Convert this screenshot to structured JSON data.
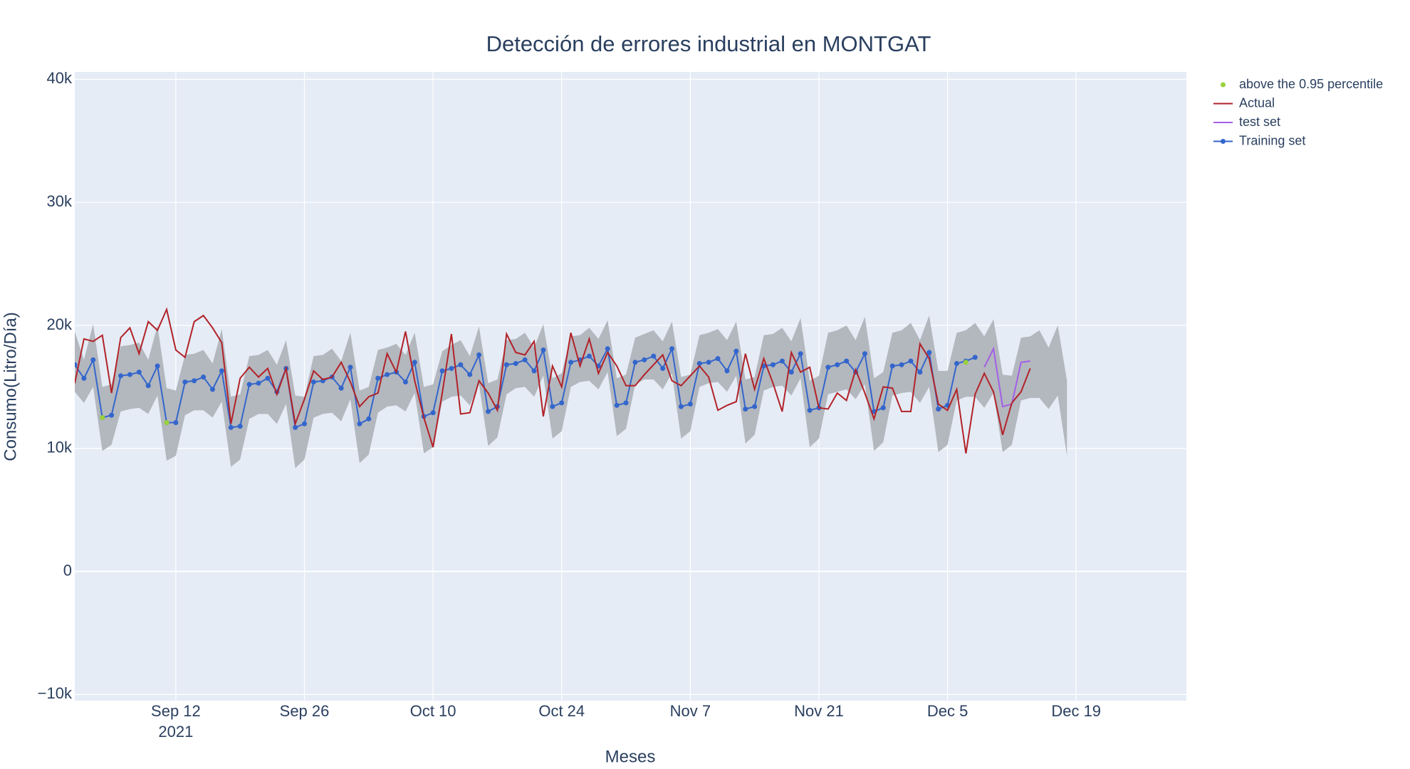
{
  "chart_data": {
    "type": "line",
    "title": "Detección de errores industrial en MONTGAT",
    "x_label": "Meses",
    "y_label": "Consumo(Litro/Día)",
    "x": [
      "2021-09-01",
      "2021-09-02",
      "2021-09-03",
      "2021-09-04",
      "2021-09-05",
      "2021-09-06",
      "2021-09-07",
      "2021-09-08",
      "2021-09-09",
      "2021-09-10",
      "2021-09-11",
      "2021-09-12",
      "2021-09-13",
      "2021-09-14",
      "2021-09-15",
      "2021-09-16",
      "2021-09-17",
      "2021-09-18",
      "2021-09-19",
      "2021-09-20",
      "2021-09-21",
      "2021-09-22",
      "2021-09-23",
      "2021-09-24",
      "2021-09-25",
      "2021-09-26",
      "2021-09-27",
      "2021-09-28",
      "2021-09-29",
      "2021-09-30",
      "2021-10-01",
      "2021-10-02",
      "2021-10-03",
      "2021-10-04",
      "2021-10-05",
      "2021-10-06",
      "2021-10-07",
      "2021-10-08",
      "2021-10-09",
      "2021-10-10",
      "2021-10-11",
      "2021-10-12",
      "2021-10-13",
      "2021-10-14",
      "2021-10-15",
      "2021-10-16",
      "2021-10-17",
      "2021-10-18",
      "2021-10-19",
      "2021-10-20",
      "2021-10-21",
      "2021-10-22",
      "2021-10-23",
      "2021-10-24",
      "2021-10-25",
      "2021-10-26",
      "2021-10-27",
      "2021-10-28",
      "2021-10-29",
      "2021-10-30",
      "2021-10-31",
      "2021-11-01",
      "2021-11-02",
      "2021-11-03",
      "2021-11-04",
      "2021-11-05",
      "2021-11-06",
      "2021-11-07",
      "2021-11-08",
      "2021-11-09",
      "2021-11-10",
      "2021-11-11",
      "2021-11-12",
      "2021-11-13",
      "2021-11-14",
      "2021-11-15",
      "2021-11-16",
      "2021-11-17",
      "2021-11-18",
      "2021-11-19",
      "2021-11-20",
      "2021-11-21",
      "2021-11-22",
      "2021-11-23",
      "2021-11-24",
      "2021-11-25",
      "2021-11-26",
      "2021-11-27",
      "2021-11-28",
      "2021-11-29",
      "2021-11-30",
      "2021-12-01",
      "2021-12-02",
      "2021-12-03",
      "2021-12-04",
      "2021-12-05",
      "2021-12-06",
      "2021-12-07",
      "2021-12-08",
      "2021-12-09",
      "2021-12-10",
      "2021-12-11",
      "2021-12-12",
      "2021-12-13",
      "2021-12-14",
      "2021-12-15",
      "2021-12-16",
      "2021-12-17",
      "2021-12-18"
    ],
    "band": {
      "color": "#b3b7be",
      "upper": [
        19500,
        17200,
        20100,
        15000,
        15200,
        18300,
        18400,
        18600,
        17200,
        20000,
        14900,
        14700,
        17600,
        17700,
        18000,
        16900,
        19700,
        14200,
        14400,
        17500,
        17600,
        18000,
        16800,
        18800,
        14300,
        14200,
        17500,
        17600,
        18100,
        17100,
        19400,
        14700,
        15000,
        18000,
        18200,
        18500,
        17600,
        19400,
        15000,
        15200,
        17900,
        18400,
        18800,
        17500,
        19900,
        15300,
        15600,
        18800,
        18900,
        19400,
        18200,
        20100,
        15700,
        16100,
        19100,
        19200,
        19800,
        18900,
        20400,
        15700,
        16000,
        19000,
        19300,
        19600,
        18700,
        20300,
        15800,
        16000,
        19200,
        19400,
        19700,
        18800,
        20300,
        15600,
        15800,
        19200,
        19300,
        19800,
        18700,
        20600,
        15500,
        15900,
        19400,
        19600,
        20000,
        18800,
        20700,
        15700,
        16200,
        19400,
        19600,
        20200,
        18800,
        20800,
        16300,
        16300,
        19400,
        19600,
        20200,
        19100,
        20500,
        16000,
        15900,
        19000,
        19100,
        19600,
        18200,
        20000,
        15500
      ],
      "lower": [
        14600,
        13700,
        15000,
        9800,
        10300,
        13000,
        13200,
        13300,
        12800,
        14300,
        9000,
        9400,
        12700,
        13100,
        13100,
        12500,
        13800,
        8500,
        9100,
        12400,
        12800,
        12800,
        12000,
        13600,
        8400,
        9100,
        12500,
        12800,
        12900,
        12200,
        14000,
        8800,
        9500,
        12900,
        13400,
        13500,
        13000,
        14500,
        9600,
        10100,
        13800,
        14200,
        14300,
        13500,
        15200,
        10200,
        10900,
        14400,
        14900,
        15000,
        14200,
        15900,
        10800,
        11400,
        15000,
        15400,
        15500,
        14800,
        16200,
        11000,
        11600,
        15200,
        15600,
        15600,
        14800,
        16100,
        10800,
        11400,
        15000,
        15300,
        15400,
        14600,
        15900,
        10400,
        11100,
        14700,
        15000,
        15100,
        14300,
        15700,
        10100,
        10800,
        14400,
        14600,
        14800,
        14000,
        15200,
        9800,
        10500,
        14300,
        14500,
        14600,
        13700,
        15000,
        9700,
        10300,
        13900,
        14200,
        14200,
        13300,
        14500,
        9700,
        10300,
        13900,
        14100,
        14100,
        13200,
        14300,
        9400
      ]
    },
    "series": [
      {
        "name": "above the 0.95 percentile",
        "color": "#9ad13a",
        "mode": "markers",
        "x": [
          "2021-09-04",
          "2021-09-11",
          "2021-12-07"
        ],
        "values": [
          12500,
          12100,
          17000
        ]
      },
      {
        "name": "Actual",
        "color": "#b22228",
        "mode": "lines",
        "values": [
          15300,
          18900,
          18700,
          19200,
          14500,
          19000,
          19800,
          17700,
          20300,
          19600,
          21300,
          18000,
          17400,
          20300,
          20800,
          19800,
          18600,
          12000,
          15700,
          16600,
          15800,
          16500,
          14400,
          16500,
          12000,
          14000,
          16300,
          15600,
          15800,
          17000,
          15400,
          13400,
          14200,
          14500,
          17700,
          16200,
          19500,
          15500,
          12500,
          10100,
          14500,
          19300,
          12800,
          12900,
          15500,
          14500,
          13100,
          19300,
          17800,
          17600,
          18700,
          12600,
          16700,
          15000,
          19400,
          16700,
          18900,
          16100,
          17800,
          16700,
          15100,
          15100,
          16000,
          16800,
          17600,
          15500,
          15100,
          15900,
          16700,
          15800,
          13100,
          13500,
          13800,
          17700,
          14800,
          17300,
          15300,
          13000,
          17800,
          16200,
          16600,
          13300,
          13200,
          14500,
          13900,
          16400,
          14500,
          12400,
          15000,
          14900,
          13000,
          13000,
          18500,
          17300,
          13600,
          13100,
          14800,
          9600,
          14400,
          16100,
          14600,
          11100,
          13700,
          14600,
          16500,
          null,
          null,
          null,
          null
        ]
      },
      {
        "name": "test set",
        "color": "#a35ee6",
        "mode": "lines",
        "x": [
          "2021-12-09",
          "2021-12-10",
          "2021-12-11",
          "2021-12-12",
          "2021-12-13",
          "2021-12-14"
        ],
        "values": [
          16600,
          18100,
          13400,
          13600,
          17000,
          17100
        ]
      },
      {
        "name": "Training set",
        "color": "#3366cc",
        "mode": "lines+markers",
        "values": [
          16800,
          15700,
          17200,
          12500,
          12700,
          15900,
          16000,
          16200,
          15100,
          16700,
          12100,
          12100,
          15400,
          15500,
          15800,
          14800,
          16300,
          11700,
          11800,
          15200,
          15300,
          15700,
          14600,
          16500,
          11700,
          12000,
          15400,
          15500,
          15800,
          14900,
          16600,
          12000,
          12400,
          15700,
          16000,
          16200,
          15400,
          17000,
          12600,
          12900,
          16300,
          16500,
          16800,
          16000,
          17600,
          13000,
          13400,
          16800,
          16900,
          17200,
          16300,
          18000,
          13400,
          13700,
          17000,
          17200,
          17500,
          16700,
          18100,
          13500,
          13700,
          17000,
          17200,
          17500,
          16500,
          18100,
          13400,
          13600,
          16900,
          17000,
          17300,
          16300,
          17900,
          13200,
          13400,
          16700,
          16800,
          17100,
          16200,
          17700,
          13100,
          13300,
          16600,
          16800,
          17100,
          16200,
          17700,
          13000,
          13300,
          16700,
          16800,
          17100,
          16200,
          17800,
          13200,
          13500,
          16900,
          17100,
          17400,
          null,
          null,
          null,
          null,
          null,
          null,
          null,
          null,
          null,
          null
        ]
      }
    ],
    "xlim": [
      "2021-09-01",
      "2021-12-31"
    ],
    "xticks": [
      {
        "value": "2021-09-12",
        "label": "Sep 12"
      },
      {
        "value": "2021-09-26",
        "label": "Sep 26"
      },
      {
        "value": "2021-10-10",
        "label": "Oct 10"
      },
      {
        "value": "2021-10-24",
        "label": "Oct 24"
      },
      {
        "value": "2021-11-07",
        "label": "Nov 7"
      },
      {
        "value": "2021-11-21",
        "label": "Nov 21"
      },
      {
        "value": "2021-12-05",
        "label": "Dec 5"
      },
      {
        "value": "2021-12-19",
        "label": "Dec 19"
      }
    ],
    "x_year_label": "2021",
    "ylim": [
      -10500,
      40600
    ],
    "yticks": [
      {
        "value": -10000,
        "label": "−10k"
      },
      0,
      {
        "value": 10000,
        "label": "10k"
      },
      {
        "value": 20000,
        "label": "20k"
      },
      {
        "value": 30000,
        "label": "30k"
      },
      {
        "value": 40000,
        "label": "40k"
      }
    ],
    "grid": true,
    "plot_background": "#e5ecf6",
    "legend": "outside-right"
  }
}
